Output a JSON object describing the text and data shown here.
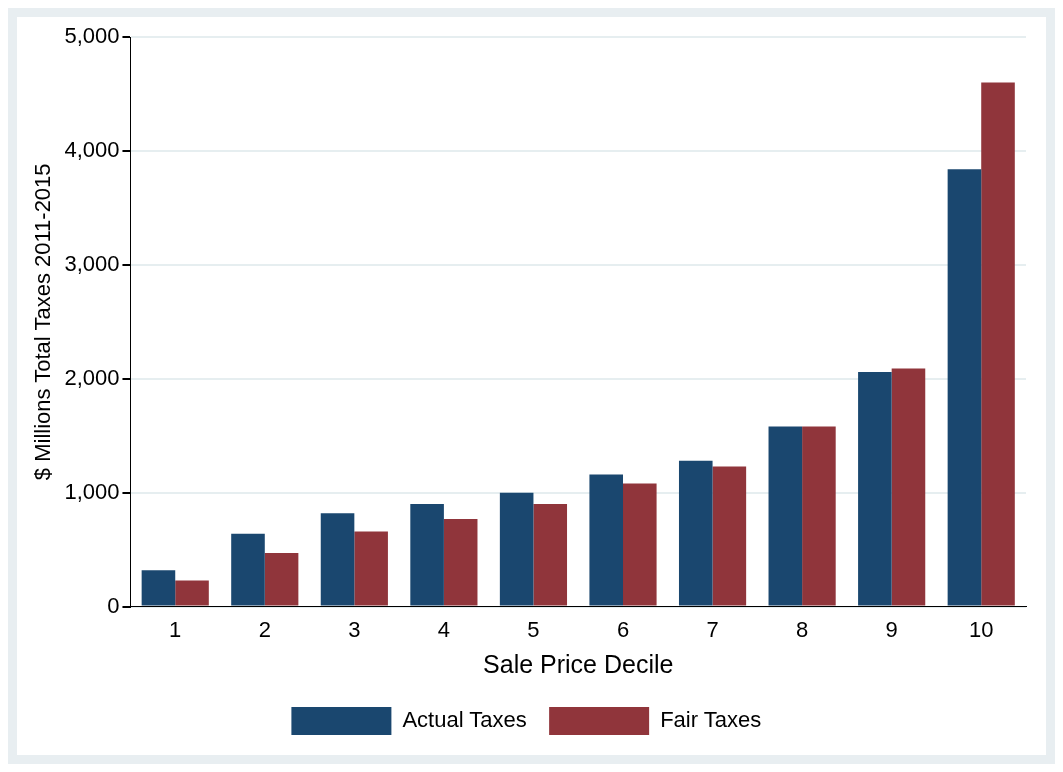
{
  "chart_data": {
    "type": "bar",
    "xlabel": "Sale Price Decile",
    "ylabel": "$ Millions Total Taxes 2011-2015",
    "categories": [
      "1",
      "2",
      "3",
      "4",
      "5",
      "6",
      "7",
      "8",
      "9",
      "10"
    ],
    "series": [
      {
        "name": "Actual Taxes",
        "color": "#1a476f",
        "values": [
          320,
          640,
          820,
          900,
          1000,
          1160,
          1280,
          1580,
          2060,
          3840
        ]
      },
      {
        "name": "Fair Taxes",
        "color": "#90353b",
        "values": [
          230,
          470,
          660,
          770,
          900,
          1080,
          1230,
          1580,
          2090,
          4600
        ]
      }
    ],
    "ylim": [
      0,
      5000
    ],
    "yticks": [
      {
        "value": 0,
        "label": "0"
      },
      {
        "value": 1000,
        "label": "1,000"
      },
      {
        "value": 2000,
        "label": "2,000"
      },
      {
        "value": 3000,
        "label": "3,000"
      },
      {
        "value": 4000,
        "label": "4,000"
      },
      {
        "value": 5000,
        "label": "5,000"
      }
    ],
    "grid": "y",
    "legend": "bottom"
  }
}
